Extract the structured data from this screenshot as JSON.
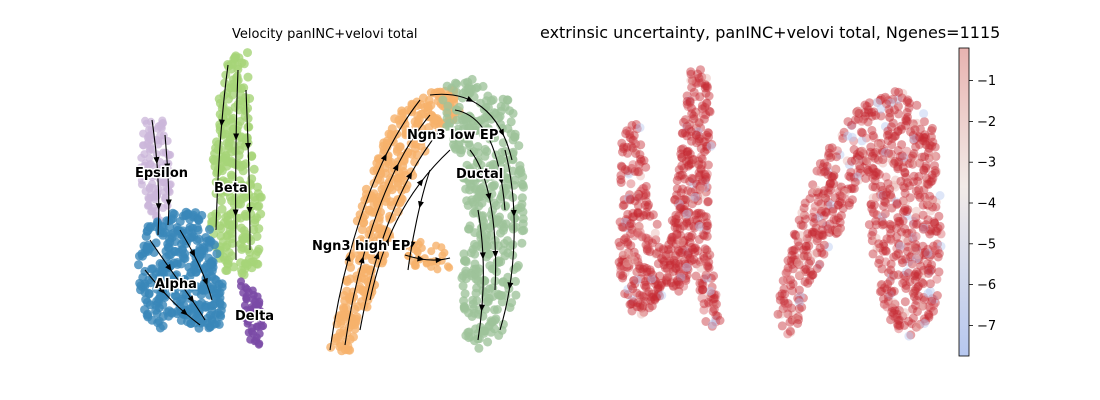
{
  "chart_data": [
    {
      "type": "scatter",
      "title": "Velocity panINC+velovi total",
      "subtitle": "",
      "xlabel": "",
      "ylabel": "",
      "legend": "on data",
      "clusters": [
        {
          "name": "Epsilon",
          "color": "#cbb6da"
        },
        {
          "name": "Beta",
          "color": "#a6d578"
        },
        {
          "name": "Alpha",
          "color": "#3a87b9"
        },
        {
          "name": "Delta",
          "color": "#7a4aa6"
        },
        {
          "name": "Ngn3 low EP",
          "color": "#9dc39a"
        },
        {
          "name": "Ductal",
          "color": "#9dc39a"
        },
        {
          "name": "Ngn3 high EP",
          "color": "#f6b26b"
        }
      ],
      "overlay": "velocity streamlines with arrowheads"
    },
    {
      "type": "scatter",
      "title": "extrinsic uncertainty, panINC+velovi total, Ngenes=1115",
      "xlabel": "",
      "ylabel": "",
      "colorbar": {
        "ticks": [
          -1,
          -2,
          -3,
          -4,
          -5,
          -6,
          -7
        ],
        "range": [
          -7.75,
          -0.2
        ],
        "colormap": "coolwarm (light blue to light red)",
        "colors": {
          "low": "#b6c7ef",
          "mid": "#f2ebe8",
          "high": "#e8b3b0"
        }
      },
      "point_color": "#c62a34"
    }
  ]
}
